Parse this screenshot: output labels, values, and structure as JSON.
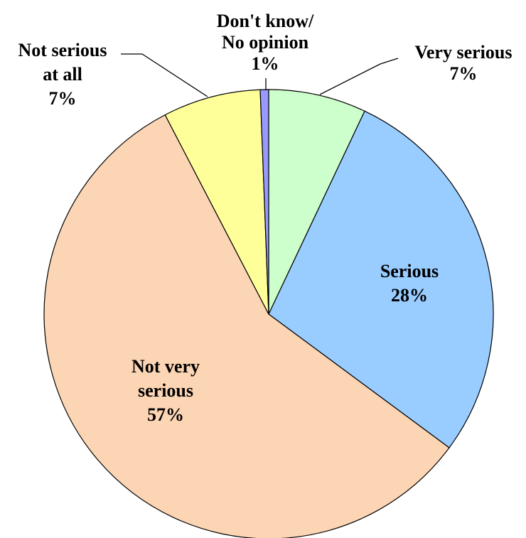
{
  "chart_data": {
    "type": "pie",
    "slices": [
      {
        "name": "Very serious",
        "label_lines": [
          "Very serious",
          "7%"
        ],
        "value": 7,
        "value_label": "7%",
        "color": "#ccffcc"
      },
      {
        "name": "Serious",
        "label_lines": [
          "Serious",
          "28%"
        ],
        "value": 28,
        "value_label": "28%",
        "color": "#99ccff"
      },
      {
        "name": "Not very serious",
        "label_lines": [
          "Not very",
          "serious",
          "57%"
        ],
        "value": 57,
        "value_label": "57%",
        "color": "#fcd5b4"
      },
      {
        "name": "Not serious at all",
        "label_lines": [
          "Not serious",
          "at all",
          "7%"
        ],
        "value": 7,
        "value_label": "7%",
        "color": "#ffff99"
      },
      {
        "name": "Don't know/ No opinion",
        "label_lines": [
          "Don't know/",
          "No opinion",
          "1%"
        ],
        "value": 0.6,
        "value_label": "1%",
        "color": "#9999ff"
      }
    ],
    "start": "12 o'clock",
    "direction": "clockwise"
  }
}
